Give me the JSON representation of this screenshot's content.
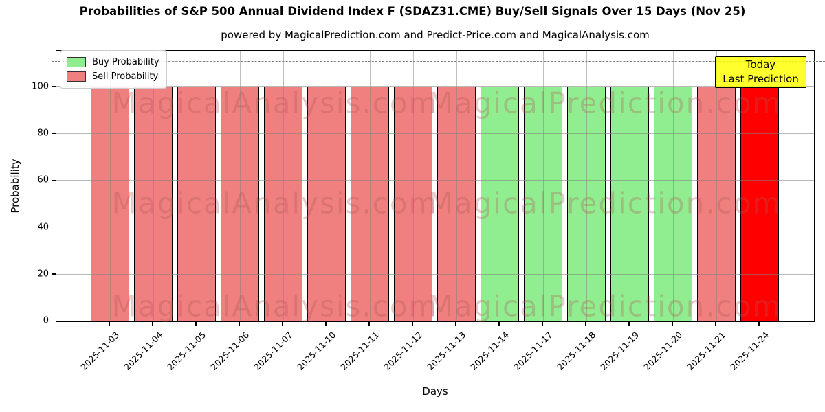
{
  "title": "Probabilities of S&P 500 Annual Dividend Index F (SDAZ31.CME) Buy/Sell Signals Over 15 Days (Nov 25)",
  "subtitle": "powered by MagicalPrediction.com and Predict-Price.com and MagicalAnalysis.com",
  "legend": {
    "items": [
      {
        "label": "Buy Probability",
        "color": "#90ee90"
      },
      {
        "label": "Sell Probability",
        "color": "#f08080"
      }
    ]
  },
  "today_box": {
    "line1": "Today",
    "line2": "Last Prediction",
    "bg_color": "#ffff00"
  },
  "watermarks": {
    "left_text": "MagicalAnalysis.com",
    "right_text": "MagicalPrediction.com"
  },
  "chart_data": {
    "type": "bar",
    "title": "Probabilities of S&P 500 Annual Dividend Index F (SDAZ31.CME) Buy/Sell Signals Over 15 Days (Nov 25)",
    "xlabel": "Days",
    "ylabel": "Probability",
    "categories": [
      "2025-11-03",
      "2025-11-04",
      "2025-11-05",
      "2025-11-06",
      "2025-11-07",
      "2025-11-10",
      "2025-11-11",
      "2025-11-12",
      "2025-11-13",
      "2025-11-14",
      "2025-11-17",
      "2025-11-18",
      "2025-11-19",
      "2025-11-20",
      "2025-11-21",
      "2025-11-24"
    ],
    "values": [
      100,
      100,
      100,
      100,
      100,
      100,
      100,
      100,
      100,
      100,
      100,
      100,
      100,
      100,
      100,
      100
    ],
    "signals": [
      "sell",
      "sell",
      "sell",
      "sell",
      "sell",
      "sell",
      "sell",
      "sell",
      "sell",
      "buy",
      "buy",
      "buy",
      "buy",
      "buy",
      "sell",
      "today"
    ],
    "colors": {
      "buy": "#90ee90",
      "sell": "#f08080",
      "today": "#ff0000"
    },
    "ylim": [
      0,
      115
    ],
    "yticks": [
      0,
      20,
      40,
      60,
      80,
      100
    ],
    "dashed_line_y": 110,
    "grid": true,
    "legend_position": "upper left",
    "bar_edge_color": "#000000"
  }
}
